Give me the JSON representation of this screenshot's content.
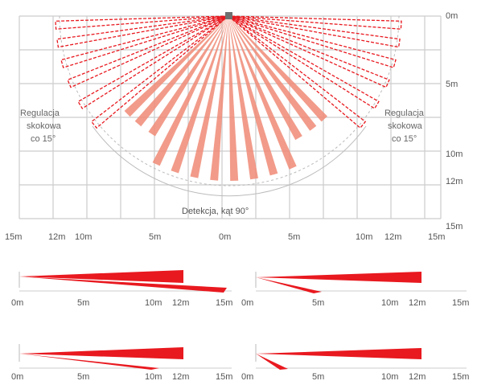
{
  "top_view": {
    "right_axis_labels": [
      "0m",
      "5m",
      "10m",
      "12m",
      "15m"
    ],
    "bottom_axis_labels": [
      "15m",
      "12m",
      "10m",
      "5m",
      "0m",
      "5m",
      "10m",
      "12m",
      "15m"
    ],
    "left_note": [
      "Regulacja",
      "skokowa",
      "co 15°"
    ],
    "right_note": [
      "Regulacja",
      "skokowa",
      "co 15°"
    ],
    "detection_caption": "Detekcja, kąt 90°"
  },
  "side_views": [
    {
      "axis_labels": [
        "0m",
        "5m",
        "10m",
        "12m",
        "15m"
      ]
    },
    {
      "axis_labels": [
        "0m",
        "5m",
        "10m",
        "12m",
        "15m"
      ]
    },
    {
      "axis_labels": [
        "0m",
        "5m",
        "10m",
        "12m",
        "15m"
      ]
    },
    {
      "axis_labels": [
        "0m",
        "5m",
        "10m",
        "12m",
        "15m"
      ]
    }
  ],
  "colors": {
    "grid": "#cccccc",
    "beam_red": "#e8191f",
    "beam_light": "#f08a76",
    "sensor": "#707070"
  }
}
